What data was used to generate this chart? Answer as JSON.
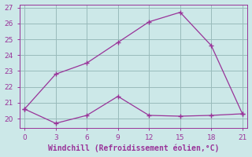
{
  "title": "",
  "xlabel": "Windchill (Refroidissement éolien,°C)",
  "ylabel": "",
  "bg_color": "#cce8e8",
  "line_color": "#993399",
  "grid_color": "#99bbbb",
  "line1_x": [
    0,
    3,
    6,
    9,
    12,
    15,
    18,
    21
  ],
  "line1_y": [
    20.6,
    22.8,
    23.5,
    24.8,
    26.1,
    26.7,
    24.6,
    20.3
  ],
  "line2_x": [
    0,
    3,
    6,
    9,
    12,
    15,
    18,
    21
  ],
  "line2_y": [
    20.6,
    19.7,
    20.2,
    21.4,
    20.2,
    20.15,
    20.2,
    20.3
  ],
  "xlim": [
    -0.5,
    21.5
  ],
  "ylim": [
    19.4,
    27.2
  ],
  "xticks": [
    0,
    3,
    6,
    9,
    12,
    15,
    18,
    21
  ],
  "yticks": [
    20,
    21,
    22,
    23,
    24,
    25,
    26,
    27
  ],
  "xlabel_fontsize": 7,
  "tick_fontsize": 6.5
}
